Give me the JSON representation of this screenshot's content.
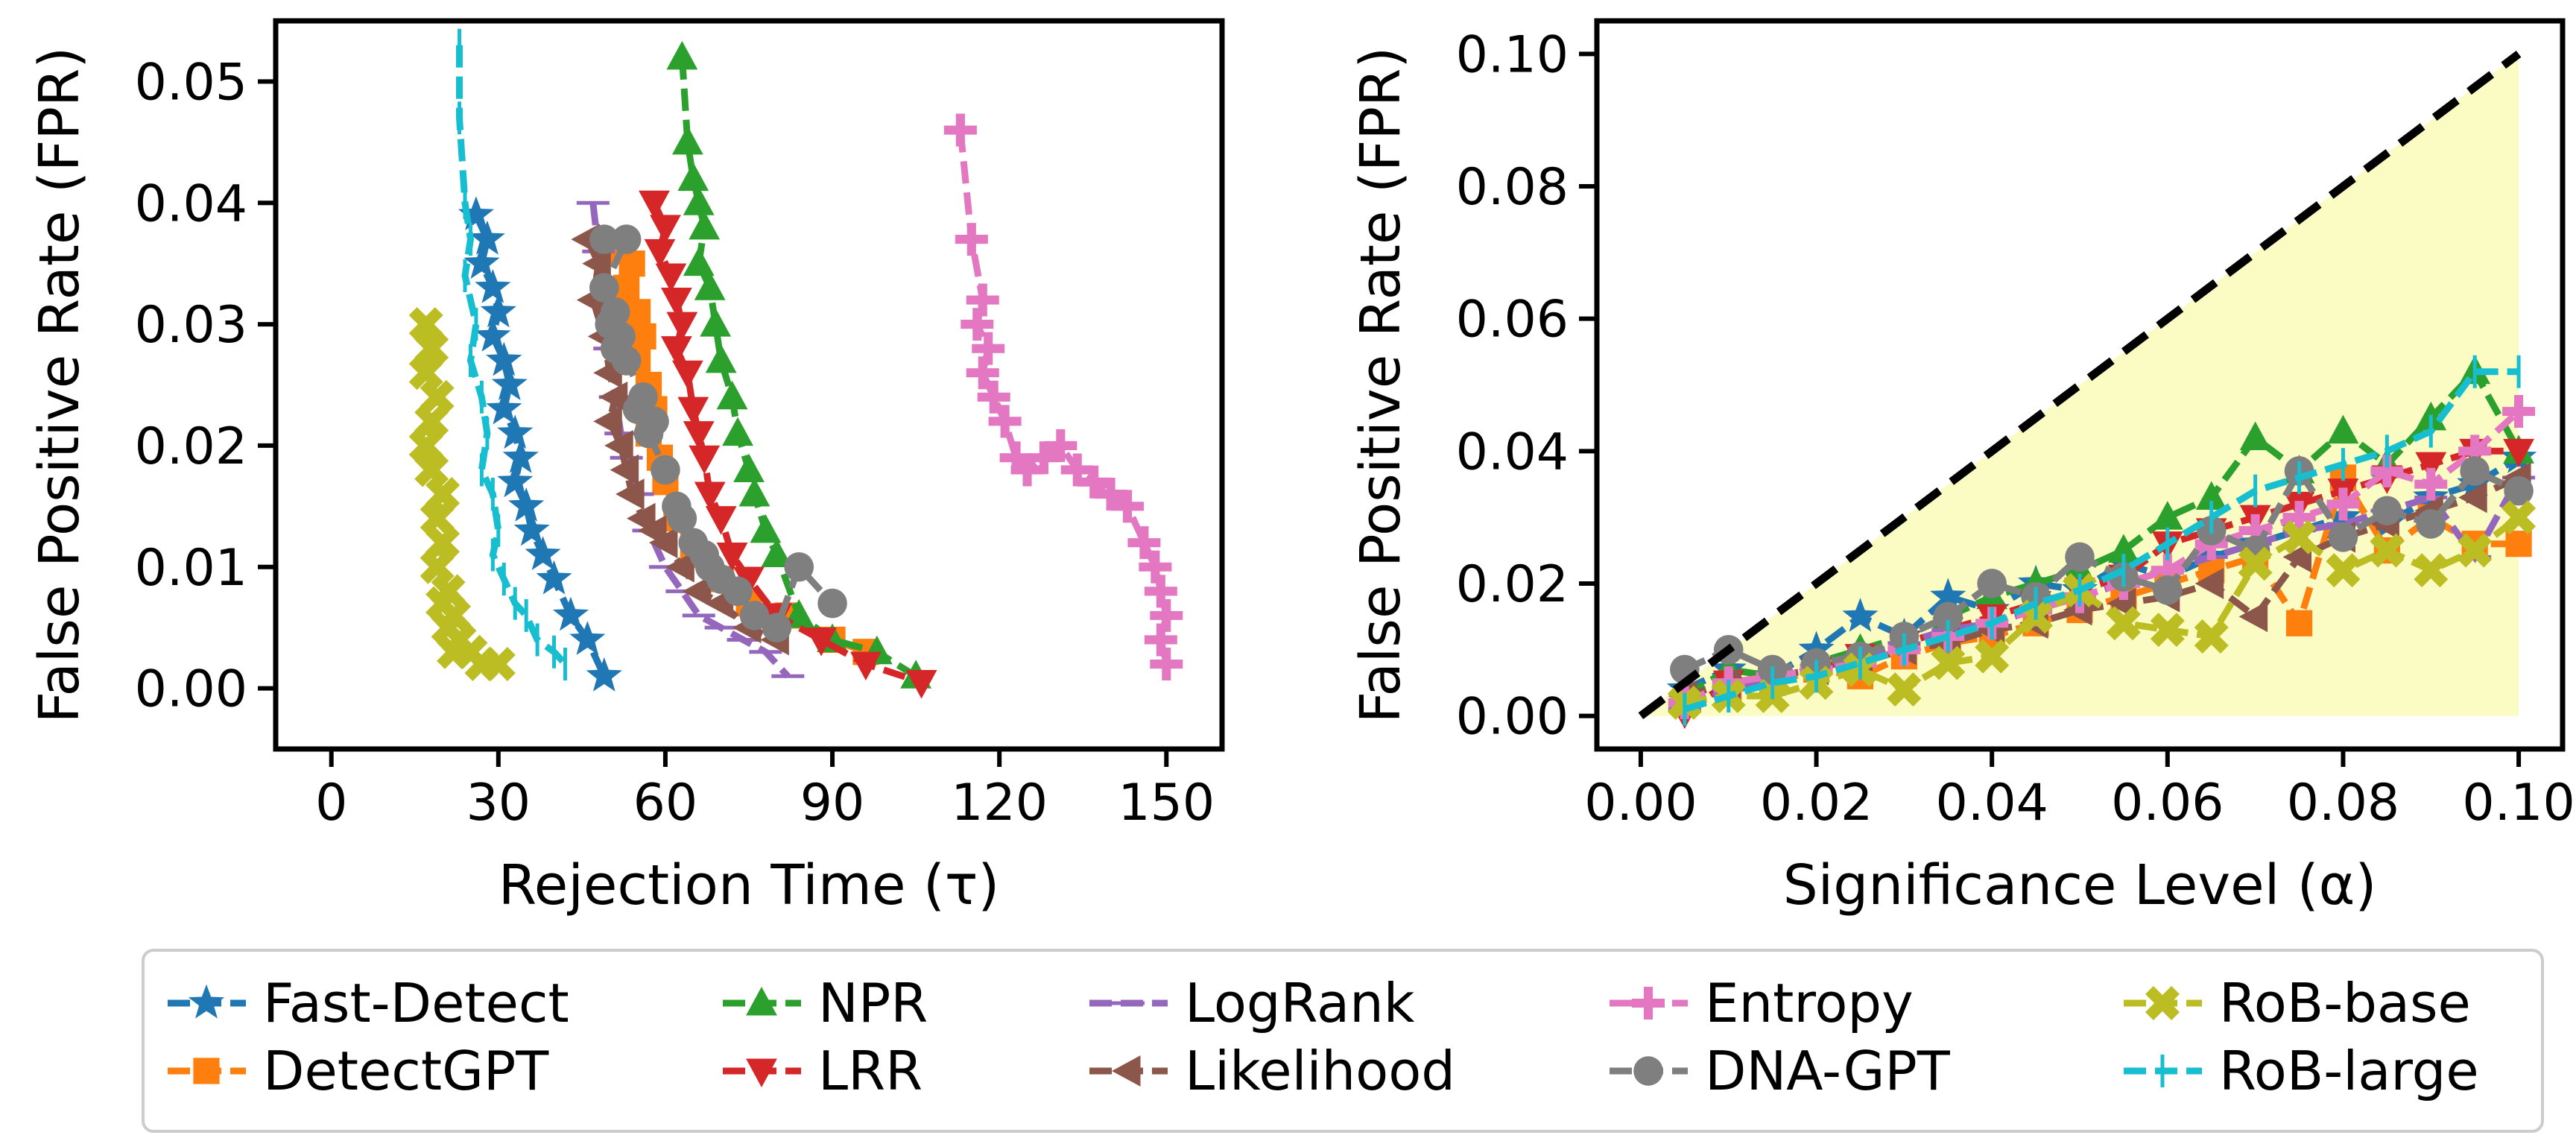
{
  "chart_data": [
    {
      "type": "line",
      "xlabel": "Rejection Time (τ)",
      "ylabel": "False Positive Rate (FPR)",
      "xlim": [
        -10,
        160
      ],
      "ylim": [
        -0.005,
        0.055
      ],
      "xticks": [
        0,
        30,
        60,
        90,
        120,
        150
      ],
      "yticks": [
        "0.00",
        "0.01",
        "0.02",
        "0.03",
        "0.04",
        "0.05"
      ],
      "yticks_values": [
        0,
        0.01,
        0.02,
        0.03,
        0.04,
        0.05
      ],
      "series": [
        {
          "name": "Fast-Detect",
          "x": [
            26,
            28,
            27,
            29,
            30,
            29,
            31,
            32,
            31,
            33,
            34,
            33,
            35,
            36,
            38,
            40,
            43,
            46,
            49
          ],
          "y": [
            0.039,
            0.037,
            0.035,
            0.033,
            0.031,
            0.029,
            0.027,
            0.025,
            0.023,
            0.021,
            0.019,
            0.017,
            0.015,
            0.013,
            0.011,
            0.009,
            0.006,
            0.004,
            0.001
          ]
        },
        {
          "name": "DetectGPT",
          "x": [
            52,
            54,
            53,
            55,
            56,
            55,
            57,
            58,
            57,
            59,
            60,
            62,
            65,
            70,
            75,
            82,
            90,
            96
          ],
          "y": [
            0.036,
            0.035,
            0.033,
            0.031,
            0.029,
            0.027,
            0.025,
            0.023,
            0.021,
            0.019,
            0.017,
            0.014,
            0.011,
            0.009,
            0.007,
            0.006,
            0.004,
            0.003
          ]
        },
        {
          "name": "NPR",
          "x": [
            63,
            64,
            65,
            66,
            67,
            66,
            68,
            69,
            70,
            72,
            73,
            75,
            76,
            78,
            80,
            84,
            90,
            98,
            105
          ],
          "y": [
            0.052,
            0.045,
            0.042,
            0.04,
            0.038,
            0.035,
            0.033,
            0.03,
            0.027,
            0.024,
            0.021,
            0.018,
            0.016,
            0.013,
            0.011,
            0.006,
            0.004,
            0.003,
            0.001
          ]
        },
        {
          "name": "LRR",
          "x": [
            58,
            60,
            59,
            61,
            62,
            63,
            62,
            64,
            65,
            66,
            67,
            68,
            70,
            72,
            75,
            80,
            88,
            96,
            106
          ],
          "y": [
            0.04,
            0.038,
            0.036,
            0.034,
            0.032,
            0.03,
            0.028,
            0.026,
            0.023,
            0.021,
            0.019,
            0.016,
            0.014,
            0.011,
            0.009,
            0.006,
            0.004,
            0.002,
            0.0005
          ]
        },
        {
          "name": "LogRank",
          "x": [
            47,
            48,
            49,
            50,
            51,
            52,
            53,
            55,
            57,
            60,
            63,
            66,
            70,
            74,
            78,
            82
          ],
          "y": [
            0.04,
            0.036,
            0.032,
            0.028,
            0.024,
            0.021,
            0.019,
            0.016,
            0.013,
            0.01,
            0.008,
            0.006,
            0.005,
            0.004,
            0.003,
            0.001
          ]
        },
        {
          "name": "Likelihood",
          "x": [
            46,
            48,
            47,
            49,
            50,
            51,
            50,
            52,
            53,
            54,
            56,
            58,
            60,
            63,
            66,
            70,
            75,
            80
          ],
          "y": [
            0.037,
            0.035,
            0.032,
            0.029,
            0.026,
            0.024,
            0.022,
            0.02,
            0.018,
            0.016,
            0.014,
            0.013,
            0.012,
            0.01,
            0.008,
            0.007,
            0.005,
            0.004
          ]
        },
        {
          "name": "Entropy",
          "x": [
            113,
            115,
            117,
            116,
            118,
            117,
            119,
            121,
            123,
            125,
            128,
            131,
            134,
            137,
            140,
            143,
            146,
            148,
            149,
            150,
            149,
            150
          ],
          "y": [
            0.046,
            0.037,
            0.032,
            0.03,
            0.028,
            0.026,
            0.024,
            0.022,
            0.019,
            0.018,
            0.019,
            0.02,
            0.018,
            0.017,
            0.016,
            0.015,
            0.012,
            0.01,
            0.008,
            0.006,
            0.004,
            0.002
          ]
        },
        {
          "name": "DNA-GPT",
          "x": [
            49,
            53,
            49,
            51,
            50,
            52,
            51,
            53,
            56,
            55,
            58,
            57,
            60,
            62,
            63,
            65,
            67,
            68,
            70,
            73,
            76,
            80,
            84,
            90
          ],
          "y": [
            0.037,
            0.037,
            0.033,
            0.031,
            0.03,
            0.029,
            0.028,
            0.027,
            0.024,
            0.023,
            0.022,
            0.021,
            0.018,
            0.015,
            0.014,
            0.012,
            0.011,
            0.01,
            0.009,
            0.008,
            0.006,
            0.005,
            0.01,
            0.007
          ]
        },
        {
          "name": "RoB-base",
          "x": [
            17,
            18,
            17,
            19,
            18,
            17,
            18,
            20,
            19,
            20,
            19,
            21,
            20,
            22,
            21,
            23,
            22,
            25,
            27,
            30
          ],
          "y": [
            0.03,
            0.028,
            0.026,
            0.024,
            0.022,
            0.02,
            0.018,
            0.016,
            0.014,
            0.012,
            0.01,
            0.008,
            0.007,
            0.006,
            0.005,
            0.004,
            0.003,
            0.003,
            0.002,
            0.002
          ]
        },
        {
          "name": "RoB-large",
          "x": [
            23,
            23,
            24,
            25,
            24,
            26,
            25,
            27,
            28,
            27,
            29,
            30,
            29,
            31,
            33,
            35,
            37,
            40,
            42
          ],
          "y": [
            0.053,
            0.047,
            0.04,
            0.037,
            0.034,
            0.03,
            0.027,
            0.024,
            0.021,
            0.018,
            0.016,
            0.013,
            0.011,
            0.009,
            0.007,
            0.006,
            0.004,
            0.003,
            0.002
          ]
        }
      ]
    },
    {
      "type": "line",
      "xlabel": "Significance Level (α)",
      "ylabel": "False Positive Rate (FPR)",
      "xlim": [
        -0.005,
        0.105
      ],
      "ylim": [
        -0.005,
        0.105
      ],
      "xticks": [
        "0.00",
        "0.02",
        "0.04",
        "0.06",
        "0.08",
        "0.10"
      ],
      "xticks_values": [
        0,
        0.02,
        0.04,
        0.06,
        0.08,
        0.1
      ],
      "yticks": [
        "0.00",
        "0.02",
        "0.04",
        "0.06",
        "0.08",
        "0.10"
      ],
      "yticks_values": [
        0,
        0.02,
        0.04,
        0.06,
        0.08,
        0.1
      ],
      "reference_line": {
        "x": [
          0,
          0.1
        ],
        "y": [
          0,
          0.1
        ],
        "style": "dashed",
        "color": "#000000"
      },
      "shaded_region": {
        "x": [
          0,
          0.1
        ],
        "y_upper": [
          0,
          0.1
        ],
        "color": "#fbfbc4"
      },
      "alpha": [
        0.005,
        0.01,
        0.015,
        0.02,
        0.025,
        0.03,
        0.035,
        0.04,
        0.045,
        0.05,
        0.055,
        0.06,
        0.065,
        0.07,
        0.075,
        0.08,
        0.085,
        0.09,
        0.095,
        0.1
      ],
      "series": [
        {
          "name": "Fast-Detect",
          "y": [
            0.004,
            0.007,
            0.006,
            0.01,
            0.015,
            0.012,
            0.018,
            0.016,
            0.02,
            0.019,
            0.023,
            0.021,
            0.024,
            0.026,
            0.028,
            0.03,
            0.029,
            0.033,
            0.035,
            0.039
          ]
        },
        {
          "name": "DetectGPT",
          "y": [
            0.002,
            0.004,
            0.005,
            0.007,
            0.006,
            0.009,
            0.011,
            0.012,
            0.014,
            0.016,
            0.018,
            0.02,
            0.022,
            0.024,
            0.014,
            0.036,
            0.025,
            0.03,
            0.026,
            0.026
          ]
        },
        {
          "name": "NPR",
          "y": [
            0.003,
            0.007,
            0.006,
            0.008,
            0.01,
            0.012,
            0.015,
            0.018,
            0.02,
            0.022,
            0.025,
            0.03,
            0.033,
            0.042,
            0.037,
            0.043,
            0.038,
            0.045,
            0.052,
            0.04
          ]
        },
        {
          "name": "LRR",
          "y": [
            0.0005,
            0.005,
            0.006,
            0.007,
            0.009,
            0.011,
            0.013,
            0.015,
            0.017,
            0.019,
            0.021,
            0.026,
            0.028,
            0.03,
            0.032,
            0.034,
            0.036,
            0.038,
            0.04,
            0.04
          ]
        },
        {
          "name": "LogRank",
          "y": [
            0.001,
            0.004,
            0.006,
            0.007,
            0.009,
            0.011,
            0.013,
            0.014,
            0.016,
            0.018,
            0.02,
            0.022,
            0.024,
            0.026,
            0.028,
            0.029,
            0.031,
            0.033,
            0.024,
            0.036
          ]
        },
        {
          "name": "Likelihood",
          "y": [
            0.003,
            0.005,
            0.006,
            0.007,
            0.008,
            0.01,
            0.011,
            0.013,
            0.014,
            0.016,
            0.017,
            0.018,
            0.02,
            0.015,
            0.024,
            0.027,
            0.029,
            0.031,
            0.033,
            0.036
          ]
        },
        {
          "name": "Entropy",
          "y": [
            0.002,
            0.005,
            0.006,
            0.007,
            0.008,
            0.01,
            0.012,
            0.014,
            0.016,
            0.018,
            0.02,
            0.022,
            0.026,
            0.028,
            0.03,
            0.032,
            0.037,
            0.035,
            0.04,
            0.046
          ]
        },
        {
          "name": "DNA-GPT",
          "y": [
            0.007,
            0.01,
            0.007,
            0.008,
            0.009,
            0.012,
            0.015,
            0.02,
            0.018,
            0.024,
            0.021,
            0.019,
            0.028,
            0.025,
            0.037,
            0.027,
            0.031,
            0.029,
            0.037,
            0.034
          ]
        },
        {
          "name": "RoB-base",
          "y": [
            0.002,
            0.003,
            0.003,
            0.005,
            0.007,
            0.004,
            0.008,
            0.009,
            0.015,
            0.019,
            0.014,
            0.013,
            0.012,
            0.023,
            0.027,
            0.022,
            0.025,
            0.022,
            0.025,
            0.03
          ]
        },
        {
          "name": "RoB-large",
          "y": [
            0.001,
            0.003,
            0.005,
            0.006,
            0.008,
            0.01,
            0.012,
            0.014,
            0.017,
            0.019,
            0.022,
            0.026,
            0.03,
            0.034,
            0.036,
            0.038,
            0.04,
            0.043,
            0.052,
            0.052
          ]
        }
      ]
    }
  ],
  "legend": {
    "placement": "bottom",
    "columns": 5,
    "entries": [
      {
        "name": "Fast-Detect",
        "color": "#1f77b4",
        "marker": "star"
      },
      {
        "name": "DetectGPT",
        "color": "#ff7f0e",
        "marker": "square"
      },
      {
        "name": "NPR",
        "color": "#2ca02c",
        "marker": "triangle-up"
      },
      {
        "name": "LRR",
        "color": "#d62728",
        "marker": "triangle-down"
      },
      {
        "name": "LogRank",
        "color": "#9467bd",
        "marker": "hline"
      },
      {
        "name": "Likelihood",
        "color": "#8c564b",
        "marker": "triangle-left"
      },
      {
        "name": "Entropy",
        "color": "#e377c2",
        "marker": "plus"
      },
      {
        "name": "DNA-GPT",
        "color": "#7f7f7f",
        "marker": "circle"
      },
      {
        "name": "RoB-base",
        "color": "#bcbd22",
        "marker": "x"
      },
      {
        "name": "RoB-large",
        "color": "#17becf",
        "marker": "vline"
      }
    ]
  }
}
